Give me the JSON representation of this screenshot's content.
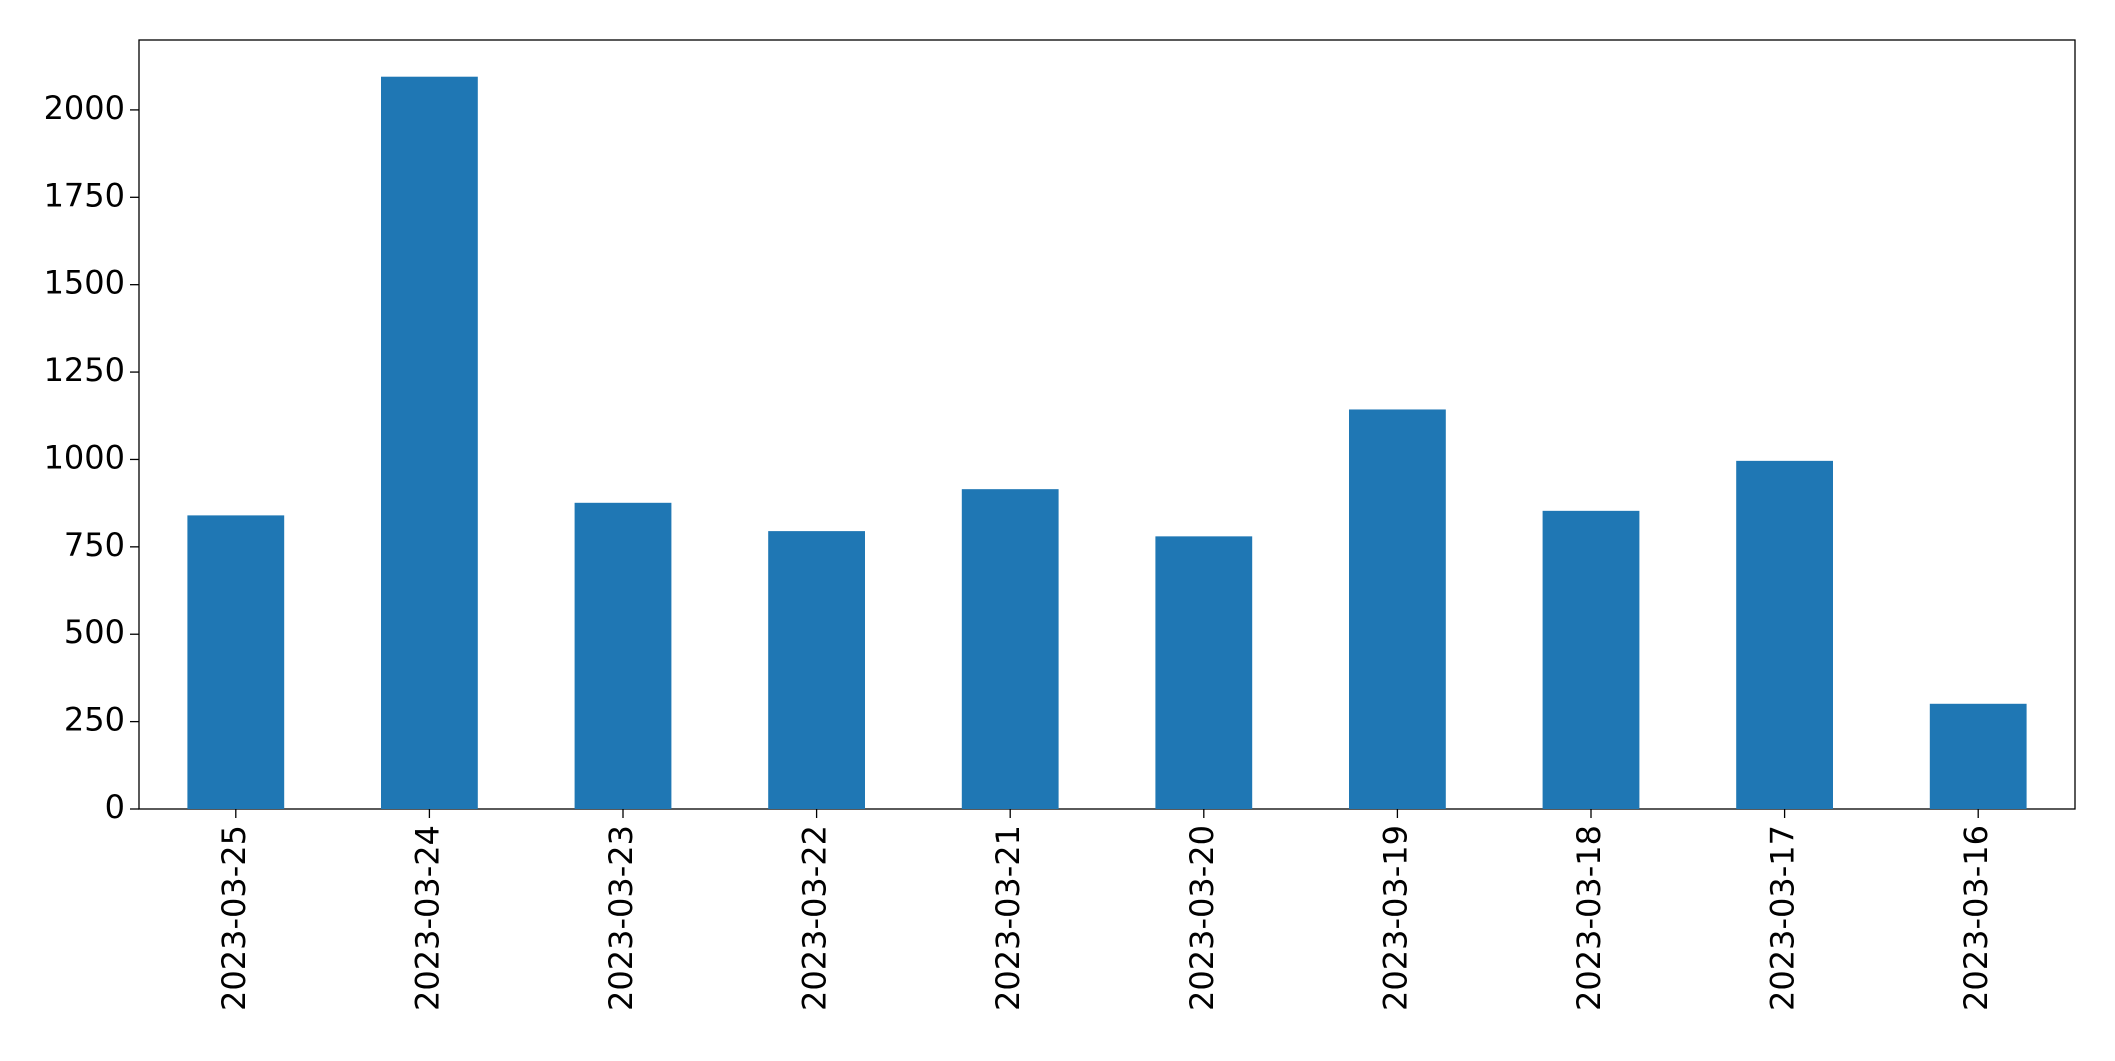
{
  "chart_data": {
    "type": "bar",
    "categories": [
      "2023-03-25",
      "2023-03-24",
      "2023-03-23",
      "2023-03-22",
      "2023-03-21",
      "2023-03-20",
      "2023-03-19",
      "2023-03-18",
      "2023-03-17",
      "2023-03-16"
    ],
    "values": [
      840,
      2095,
      876,
      795,
      915,
      780,
      1143,
      853,
      996,
      301
    ],
    "color": "#1f77b4",
    "ylim": [
      0,
      2200
    ],
    "yticks": [
      0,
      250,
      500,
      750,
      1000,
      1250,
      1500,
      1750,
      2000
    ],
    "grid": false
  }
}
